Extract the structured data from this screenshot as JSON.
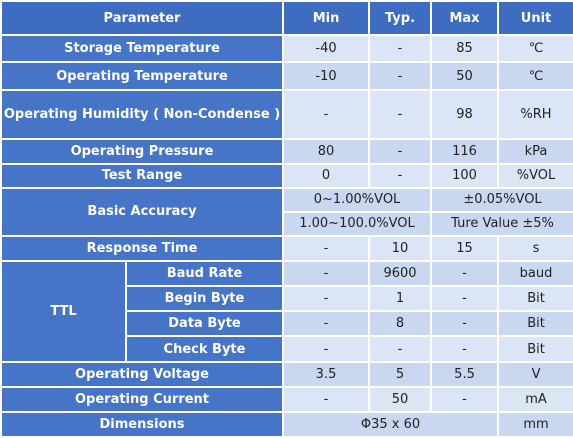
{
  "table": {
    "header": [
      "Parameter",
      "Min",
      "Typ.",
      "Max",
      "Unit"
    ],
    "rows": [
      [
        "Storage Temperature",
        "-40",
        "-",
        "85",
        "℃"
      ],
      [
        "Operating Temperature",
        "-10",
        "-",
        "50",
        "℃"
      ],
      [
        "Operating Humidity ( Non-Condense )",
        "-",
        "-",
        "98",
        "%RH"
      ],
      [
        "Operating Pressure",
        "80",
        "-",
        "116",
        "kPa"
      ],
      [
        "Test Range",
        "0",
        "-",
        "100",
        "%VOL"
      ],
      [
        "Basic Accuracy",
        "0~1.00%VOL",
        "±0.05%VOL"
      ],
      [
        "1.00~100.0%VOL",
        "Ture Value ±5%"
      ],
      [
        "Response Time",
        "-",
        "10",
        "15",
        "s"
      ],
      [
        "TTL",
        "Baud Rate",
        "-",
        "9600",
        "-",
        "baud"
      ],
      [
        "Begin Byte",
        "-",
        "1",
        "-",
        "Bit"
      ],
      [
        "Data Byte",
        "-",
        "8",
        "-",
        "Bit"
      ],
      [
        "Check Byte",
        "-",
        "-",
        "-",
        "Bit"
      ],
      [
        "Operating Voltage",
        "3.5",
        "5",
        "5.5",
        "V"
      ],
      [
        "Operating Current",
        "-",
        "50",
        "-",
        "mA"
      ],
      [
        "Dimensions",
        "Φ35 x 60",
        "mm"
      ]
    ]
  }
}
